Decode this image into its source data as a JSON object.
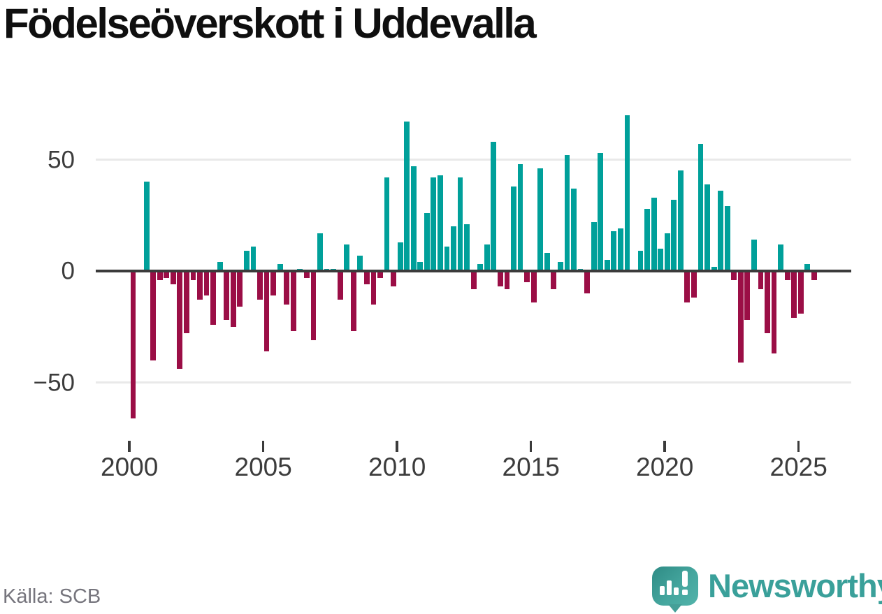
{
  "title": "Födelseöverskott i Uddevalla",
  "source": {
    "label": "Källa: SCB"
  },
  "branding": {
    "wordmark": "Newsworthy",
    "logo_icon": "speech-bubble-bar-chart-icon",
    "brand_color": "#3aa09a"
  },
  "chart_data": {
    "type": "bar",
    "title": "Födelseöverskott i Uddevalla",
    "frequency": "quarterly",
    "start_period": "2000Q1",
    "end_period": "2025Q3",
    "values": [
      -66,
      0,
      40,
      -40,
      -4,
      -3,
      -6,
      -44,
      -28,
      -4,
      -13,
      -11,
      -24,
      4,
      -22,
      -25,
      -16,
      9,
      11,
      -13,
      -36,
      -11,
      3,
      -15,
      -27,
      1,
      -3,
      -31,
      17,
      1,
      1,
      -13,
      12,
      -27,
      7,
      -6,
      -15,
      -3,
      42,
      -7,
      13,
      67,
      47,
      4,
      26,
      42,
      43,
      11,
      20,
      42,
      21,
      -8,
      3,
      12,
      58,
      -7,
      -8,
      38,
      48,
      -5,
      -14,
      46,
      8,
      -8,
      4,
      52,
      37,
      1,
      -10,
      22,
      53,
      5,
      18,
      19,
      70,
      0,
      9,
      28,
      33,
      10,
      17,
      32,
      45,
      -14,
      -12,
      57,
      39,
      2,
      36,
      29,
      -4,
      -41,
      -22,
      14,
      -8,
      -28,
      -37,
      12,
      -4,
      -21,
      -19,
      3,
      -4
    ],
    "x_tick_labels": [
      "2000",
      "2005",
      "2010",
      "2015",
      "2020",
      "2025"
    ],
    "y_tick_labels": [
      "50",
      "0",
      "−50"
    ],
    "y_ticks": [
      50,
      0,
      -50
    ],
    "ylim": [
      -70,
      75
    ],
    "grid": "horizontal",
    "legend": "none",
    "colors": {
      "positive": "#00a09a",
      "negative": "#9b0e46"
    }
  }
}
